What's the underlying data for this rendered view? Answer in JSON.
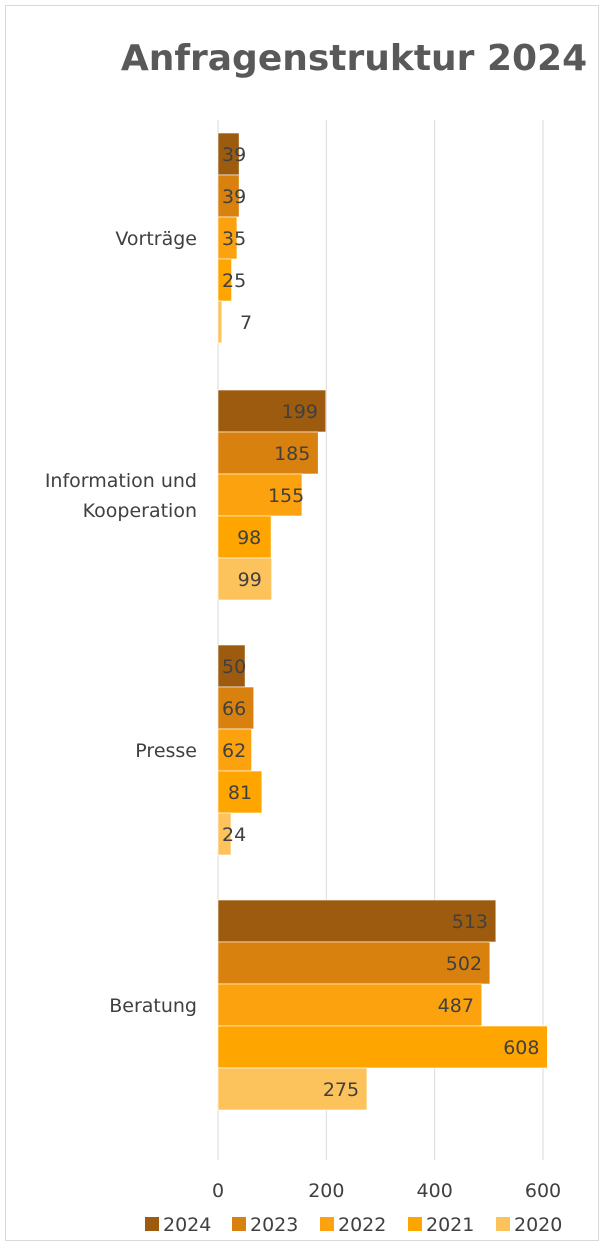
{
  "chart_data": {
    "type": "bar",
    "orientation": "horizontal",
    "title": "Anfragenstruktur 2024",
    "categories": [
      "Vorträge",
      "Information und Kooperation",
      "Presse",
      "Beratung"
    ],
    "category_label_lines": [
      [
        "Vorträge"
      ],
      [
        "Information und",
        "Kooperation"
      ],
      [
        "Presse"
      ],
      [
        "Beratung"
      ]
    ],
    "series": [
      {
        "name": "2024",
        "color": "#9c5b0f",
        "values": [
          39,
          199,
          50,
          513
        ]
      },
      {
        "name": "2023",
        "color": "#d8810f",
        "values": [
          39,
          185,
          66,
          502
        ]
      },
      {
        "name": "2022",
        "color": "#fca20e",
        "values": [
          35,
          155,
          62,
          487
        ]
      },
      {
        "name": "2021",
        "color": "#ffa500",
        "values": [
          25,
          98,
          81,
          608
        ]
      },
      {
        "name": "2020",
        "color": "#fcc35d",
        "values": [
          7,
          99,
          24,
          275
        ]
      }
    ],
    "xlim": [
      0,
      600
    ],
    "xticks": [
      0,
      200,
      400,
      600
    ],
    "grid": true,
    "legend_position": "bottom",
    "data_labels": true
  }
}
